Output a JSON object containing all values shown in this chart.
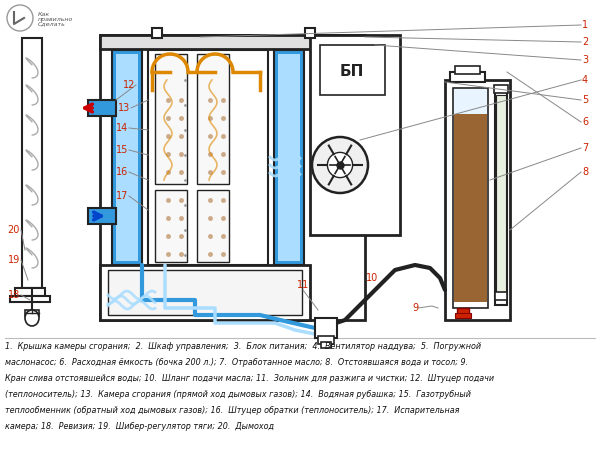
{
  "bg_color": "#ffffff",
  "caption_lines": [
    "1.  Крышка камеры сгорания;  2.  Шкаф управления;  3.  Блок питания;  4.  Вентилятор наддува;  5.  Погружной",
    "маслонасос; 6.  Расходная ёмкость (бочка 200 л.); 7.  Отработанное масло; 8.  Отстоявшаяся вода и тосол; 9.",
    "Кран слива отстоявшейся воды; 10.  Шланг подачи масла; 11.  Зольник для разжига и чистки; 12.  Штуцер подачи",
    "(теплоноситель); 13.  Камера сгорания (прямой ход дымовых газов); 14.  Водяная рубашка; 15.  Газотрубный",
    "теплообменник (обратный ход дымовых газов); 16.  Штуцер обратки (теплоноситель); 17.  Испарительная",
    "камера; 18.  Ревизия; 19.  Шибер-регулятор тяги; 20.  Дымоход"
  ],
  "label_color": "#cc2200",
  "line_color": "#222222",
  "blue_color": "#3399dd",
  "light_blue": "#aaddff",
  "orange_color": "#dd8800",
  "brown_color": "#996633",
  "gray_color": "#cccccc",
  "dark_gray": "#888888"
}
